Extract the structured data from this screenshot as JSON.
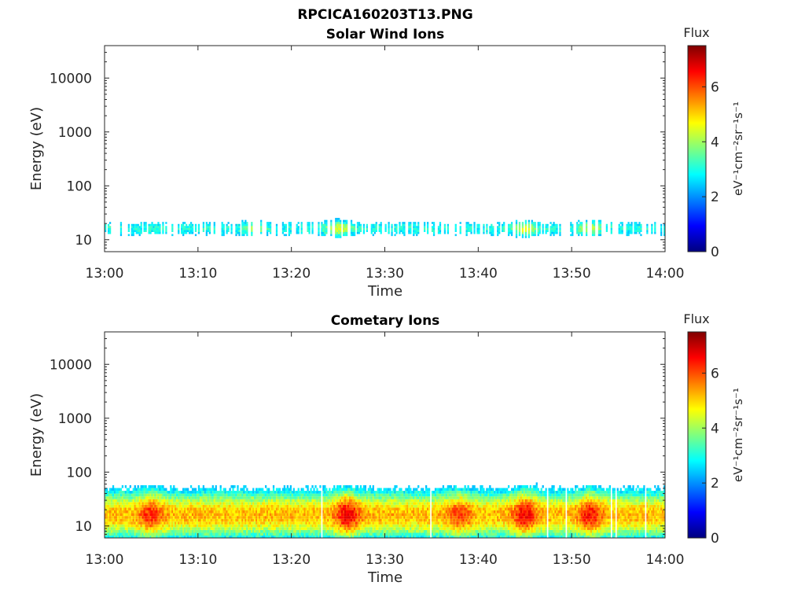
{
  "figure": {
    "title": "RPCICA160203T13.PNG"
  },
  "colormap": {
    "stops": [
      "#00007f",
      "#0000ff",
      "#007fff",
      "#00ffff",
      "#7fff7f",
      "#ffff00",
      "#ff7f00",
      "#ff0000",
      "#7f0000"
    ]
  },
  "chart_data": [
    {
      "type": "heatmap",
      "title": "Solar Wind Ions",
      "xlabel": "Time",
      "ylabel": "Energy (eV)",
      "x_ticks": [
        "13:00",
        "13:10",
        "13:20",
        "13:30",
        "13:40",
        "13:50",
        "14:00"
      ],
      "x_range": [
        "13:00",
        "14:00"
      ],
      "y_scale": "log",
      "y_ticks": [
        10,
        100,
        1000,
        10000
      ],
      "y_range": [
        6,
        40000
      ],
      "colorbar": {
        "label": "Flux",
        "units": "eV⁻¹cm⁻²sr⁻¹s⁻¹",
        "ticks": [
          0,
          2,
          4,
          6
        ],
        "range": [
          0,
          7.5
        ]
      },
      "data": {
        "energy_band_eV": [
          10,
          25
        ],
        "peak_energy_eV": 16,
        "typical_flux": 3.0,
        "max_flux": 4.6,
        "coverage": 0.55,
        "enhancements": [
          {
            "time": "13:16",
            "flux": 3.9
          },
          {
            "time": "13:25",
            "flux": 4.6
          },
          {
            "time": "13:45",
            "flux": 4.4
          },
          {
            "time": "13:52",
            "flux": 4.2
          }
        ]
      }
    },
    {
      "type": "heatmap",
      "title": "Cometary Ions",
      "xlabel": "Time",
      "ylabel": "Energy (eV)",
      "x_ticks": [
        "13:00",
        "13:10",
        "13:20",
        "13:30",
        "13:40",
        "13:50",
        "14:00"
      ],
      "x_range": [
        "13:00",
        "14:00"
      ],
      "y_scale": "log",
      "y_ticks": [
        10,
        100,
        1000,
        10000
      ],
      "y_range": [
        6,
        40000
      ],
      "colorbar": {
        "label": "Flux",
        "units": "eV⁻¹cm⁻²sr⁻¹s⁻¹",
        "ticks": [
          0,
          2,
          4,
          6
        ],
        "range": [
          0,
          7.5
        ]
      },
      "data": {
        "energy_band_eV": [
          6,
          60
        ],
        "peak_energy_eV": 16,
        "typical_flux": 5.2,
        "max_flux": 6.8,
        "coverage": 0.97,
        "enhancements": [
          {
            "time": "13:05",
            "flux": 6.3
          },
          {
            "time": "13:26",
            "flux": 6.8
          },
          {
            "time": "13:38",
            "flux": 6.2
          },
          {
            "time": "13:45",
            "flux": 6.7
          },
          {
            "time": "13:52",
            "flux": 6.5
          }
        ]
      }
    }
  ]
}
